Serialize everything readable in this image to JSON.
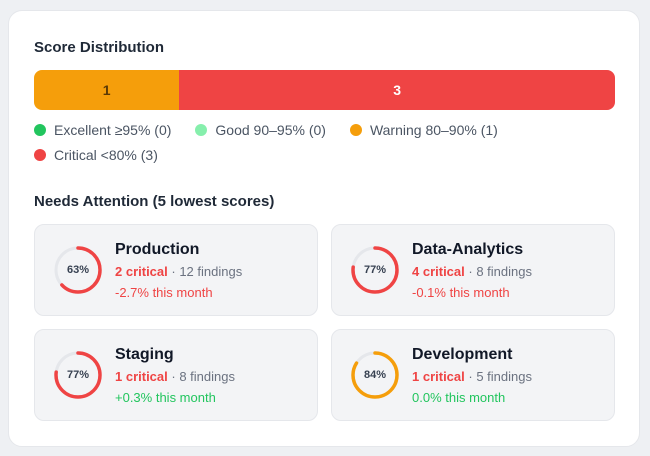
{
  "distribution": {
    "title": "Score Distribution",
    "segments": [
      {
        "label": "1",
        "value": 1,
        "color": "#f59e0b",
        "text_color": "#5b3a06"
      },
      {
        "label": "3",
        "value": 3,
        "color": "#ef4444",
        "text_color": "#ffffff"
      }
    ],
    "legend": [
      {
        "label": "Excellent ≥95% (0)",
        "color": "#22c55e"
      },
      {
        "label": "Good 90–95% (0)",
        "color": "#86efac"
      },
      {
        "label": "Warning 80–90% (1)",
        "color": "#f59e0b"
      },
      {
        "label": "Critical <80% (3)",
        "color": "#ef4444"
      }
    ]
  },
  "attention": {
    "title": "Needs Attention (5 lowest scores)",
    "items": [
      {
        "name": "Production",
        "score": 63,
        "score_label": "63%",
        "ring_color": "#ef4444",
        "critical": "2 critical",
        "findings": " · 12 findings",
        "trend": "-2.7% this month",
        "trend_color": "#ef4444"
      },
      {
        "name": "Data-Analytics",
        "score": 77,
        "score_label": "77%",
        "ring_color": "#ef4444",
        "critical": "4 critical",
        "findings": " · 8 findings",
        "trend": "-0.1% this month",
        "trend_color": "#ef4444"
      },
      {
        "name": "Staging",
        "score": 77,
        "score_label": "77%",
        "ring_color": "#ef4444",
        "critical": "1 critical",
        "findings": " · 8 findings",
        "trend": "+0.3% this month",
        "trend_color": "#22c55e"
      },
      {
        "name": "Development",
        "score": 84,
        "score_label": "84%",
        "ring_color": "#f59e0b",
        "critical": "1 critical",
        "findings": " · 5 findings",
        "trend": "0.0% this month",
        "trend_color": "#22c55e"
      }
    ]
  }
}
